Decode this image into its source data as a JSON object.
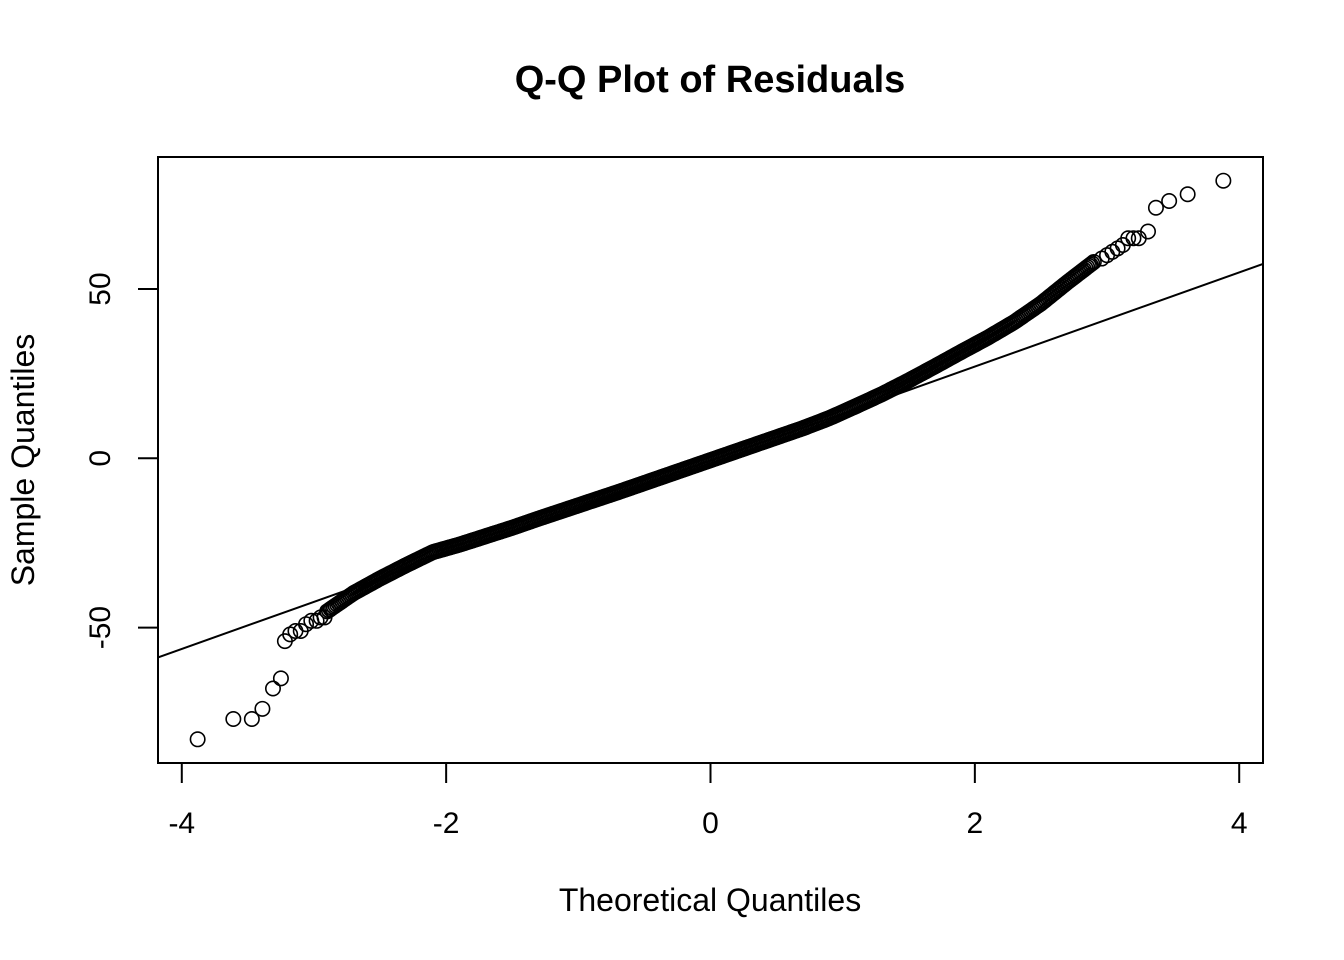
{
  "chart_data": {
    "type": "scatter",
    "title": "Q-Q Plot of Residuals",
    "xlabel": "Theoretical Quantiles",
    "ylabel": "Sample Quantiles",
    "xlim": [
      -4.18,
      4.18
    ],
    "ylim": [
      -90,
      89
    ],
    "x_ticks": [
      -4,
      -2,
      0,
      2,
      4
    ],
    "x_tick_labels": [
      "-4",
      "-2",
      "0",
      "2",
      "4"
    ],
    "y_ticks": [
      -50,
      0,
      50
    ],
    "y_tick_labels": [
      "-50",
      "0",
      "50"
    ],
    "grid": false,
    "legend": "none",
    "marker": "open-circle",
    "reference_line": {
      "intercept": -0.7,
      "slope": 13.9,
      "label": ""
    },
    "body_curve": [
      [
        -2.9,
        -45.2
      ],
      [
        -2.7,
        -39.8
      ],
      [
        -2.5,
        -35.5
      ],
      [
        -2.3,
        -31.5
      ],
      [
        -2.1,
        -27.7
      ],
      [
        -1.9,
        -25.5
      ],
      [
        -1.7,
        -23.0
      ],
      [
        -1.5,
        -20.5
      ],
      [
        -1.3,
        -17.8
      ],
      [
        -1.1,
        -15.2
      ],
      [
        -0.9,
        -12.6
      ],
      [
        -0.7,
        -10.0
      ],
      [
        -0.5,
        -7.3
      ],
      [
        -0.3,
        -4.6
      ],
      [
        -0.1,
        -1.9
      ],
      [
        0.1,
        0.8
      ],
      [
        0.3,
        3.5
      ],
      [
        0.5,
        6.2
      ],
      [
        0.7,
        8.9
      ],
      [
        0.9,
        11.9
      ],
      [
        1.1,
        15.4
      ],
      [
        1.3,
        19.0
      ],
      [
        1.5,
        23.0
      ],
      [
        1.7,
        27.2
      ],
      [
        1.9,
        31.5
      ],
      [
        2.1,
        35.7
      ],
      [
        2.3,
        40.3
      ],
      [
        2.5,
        45.7
      ],
      [
        2.7,
        52.0
      ],
      [
        2.9,
        58.0
      ]
    ],
    "points": [
      [
        -3.88,
        -83
      ],
      [
        -3.61,
        -77
      ],
      [
        -3.47,
        -77
      ],
      [
        -3.39,
        -74
      ],
      [
        -3.31,
        -68
      ],
      [
        -3.25,
        -65
      ],
      [
        -3.22,
        -54
      ],
      [
        -3.18,
        -52
      ],
      [
        -3.14,
        -51
      ],
      [
        -3.1,
        -51
      ],
      [
        -3.06,
        -49
      ],
      [
        -3.02,
        -48
      ],
      [
        -2.98,
        -48
      ],
      [
        -2.95,
        -47
      ],
      [
        -2.92,
        -47
      ],
      [
        2.96,
        59
      ],
      [
        3.0,
        60
      ],
      [
        3.04,
        61
      ],
      [
        3.08,
        62
      ],
      [
        3.12,
        63
      ],
      [
        3.16,
        65
      ],
      [
        3.2,
        65
      ],
      [
        3.24,
        65
      ],
      [
        3.31,
        67
      ],
      [
        3.37,
        74
      ],
      [
        3.47,
        76
      ],
      [
        3.61,
        78
      ],
      [
        3.88,
        82
      ]
    ]
  }
}
